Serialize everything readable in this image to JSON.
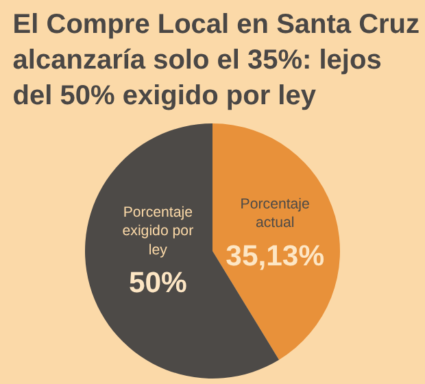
{
  "chart_data": {
    "type": "pie",
    "title": "El Compre Local en Santa Cruz alcanzaría solo el 35%: lejos del 50% exigido por ley",
    "categories": [
      "Porcentaje actual",
      "Porcentaje exigido por ley"
    ],
    "values": [
      35.13,
      50
    ],
    "value_labels": [
      "35,13%",
      "50%"
    ],
    "colors": [
      "#e8913a",
      "#4d4a47"
    ],
    "legend": false
  }
}
